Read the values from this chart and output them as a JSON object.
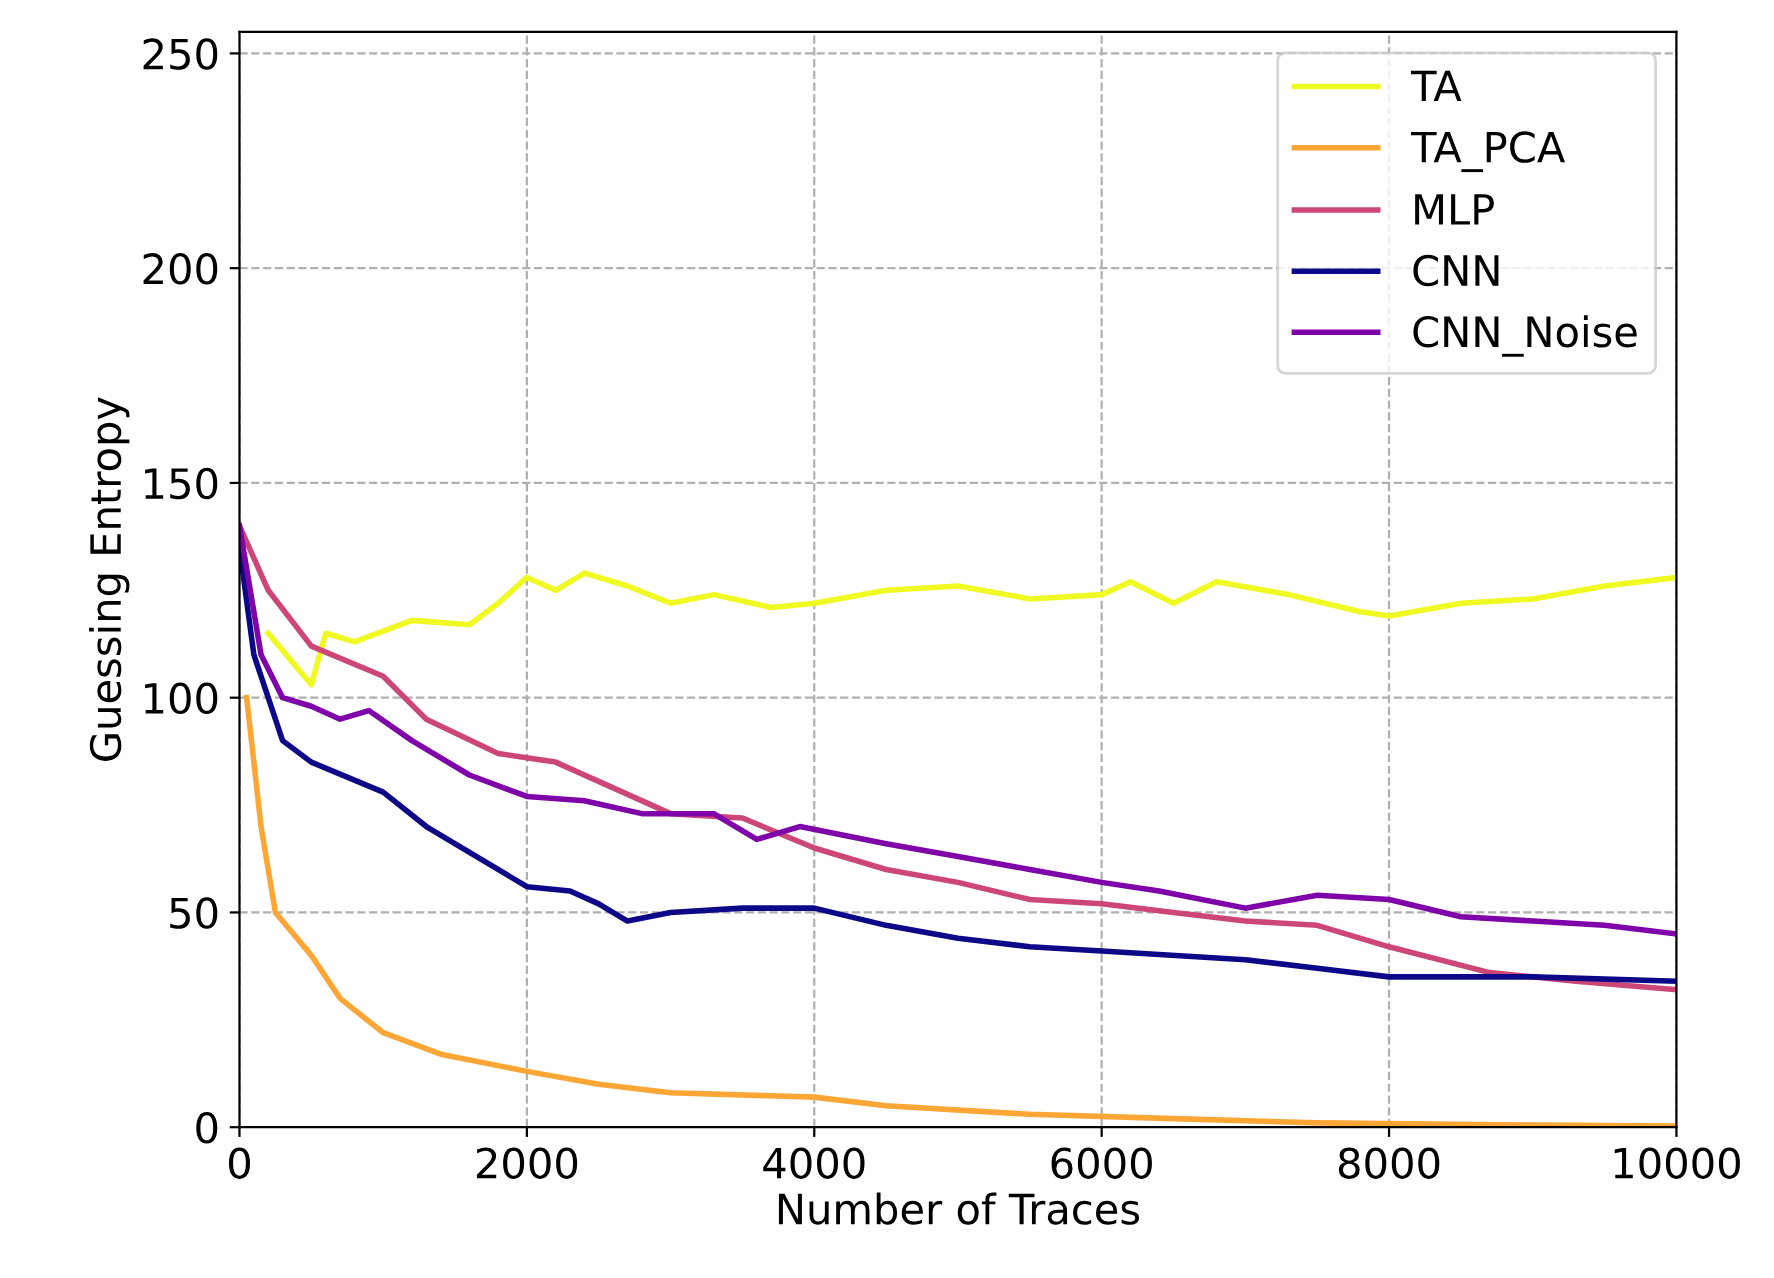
{
  "chart_data": {
    "type": "line",
    "xlabel": "Number of Traces",
    "ylabel": "Guessing Entropy",
    "xlim": [
      0,
      10000
    ],
    "ylim": [
      0,
      255
    ],
    "xticks": [
      0,
      2000,
      4000,
      6000,
      8000,
      10000
    ],
    "yticks": [
      0,
      50,
      100,
      150,
      200,
      250
    ],
    "grid": true,
    "legend": "top right",
    "line_style": "solid",
    "series": [
      {
        "name": "TA",
        "color": "#f0f921",
        "x": [
          200,
          500,
          600,
          800,
          1200,
          1600,
          1800,
          2000,
          2200,
          2400,
          2700,
          3000,
          3300,
          3700,
          4000,
          4500,
          5000,
          5500,
          6000,
          6200,
          6500,
          6800,
          7300,
          7800,
          8000,
          8500,
          9000,
          9500,
          10000
        ],
        "values": [
          115,
          103,
          115,
          113,
          118,
          117,
          122,
          128,
          125,
          129,
          126,
          122,
          124,
          121,
          122,
          125,
          126,
          123,
          124,
          127,
          122,
          127,
          124,
          120,
          119,
          122,
          123,
          126,
          128
        ]
      },
      {
        "name": "TA_PCA",
        "color": "#fca636",
        "x": [
          50,
          150,
          250,
          500,
          700,
          1000,
          1400,
          2000,
          2500,
          3000,
          4000,
          4500,
          5500,
          6500,
          7500,
          9000,
          10000
        ],
        "values": [
          100,
          70,
          50,
          40,
          30,
          22,
          17,
          13,
          10,
          8,
          7,
          5,
          3,
          2,
          1,
          0.5,
          0.3
        ]
      },
      {
        "name": "MLP",
        "color": "#cc4778",
        "x": [
          0,
          200,
          500,
          1000,
          1300,
          1800,
          2200,
          2600,
          3000,
          3500,
          4000,
          4500,
          5000,
          5500,
          6000,
          6500,
          7000,
          7500,
          8000,
          8700,
          9300,
          10000
        ],
        "values": [
          140,
          125,
          112,
          105,
          95,
          87,
          85,
          79,
          73,
          72,
          65,
          60,
          57,
          53,
          52,
          50,
          48,
          47,
          42,
          36,
          34,
          32
        ]
      },
      {
        "name": "CNN",
        "color": "#0d0887",
        "x": [
          0,
          100,
          300,
          500,
          1000,
          1300,
          1700,
          2000,
          2300,
          2500,
          2700,
          3000,
          3500,
          4000,
          4500,
          5000,
          5500,
          6000,
          7000,
          7500,
          8000,
          9000,
          10000
        ],
        "values": [
          135,
          110,
          90,
          85,
          78,
          70,
          62,
          56,
          55,
          52,
          48,
          50,
          51,
          51,
          47,
          44,
          42,
          41,
          39,
          37,
          35,
          35,
          34
        ]
      },
      {
        "name": "CNN_Noise",
        "color": "#7e03a8",
        "x": [
          0,
          150,
          300,
          500,
          700,
          900,
          1200,
          1600,
          2000,
          2400,
          2800,
          3300,
          3600,
          3900,
          4500,
          5000,
          5500,
          6000,
          6400,
          7000,
          7500,
          8000,
          8500,
          9000,
          9500,
          10000
        ],
        "values": [
          140,
          110,
          100,
          98,
          95,
          97,
          90,
          82,
          77,
          76,
          73,
          73,
          67,
          70,
          66,
          63,
          60,
          57,
          55,
          51,
          54,
          53,
          49,
          48,
          47,
          45
        ]
      }
    ]
  }
}
